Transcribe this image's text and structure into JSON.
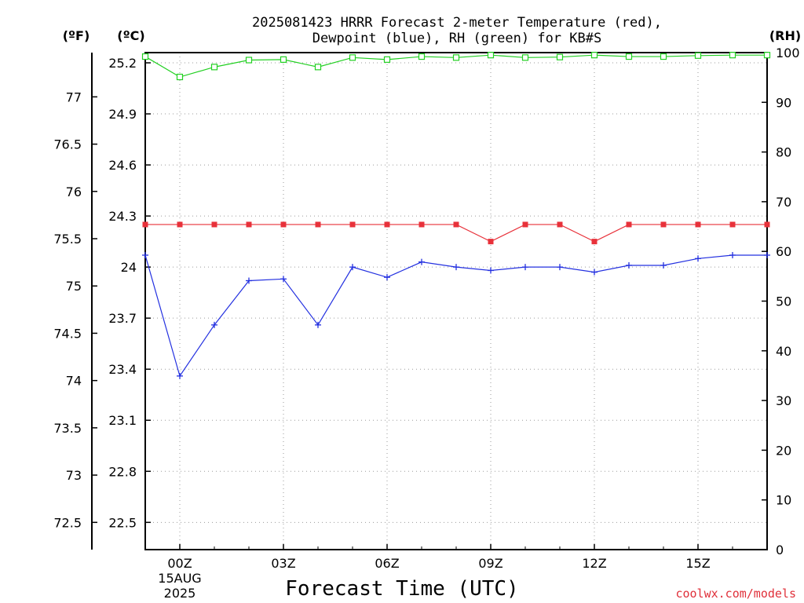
{
  "chart_data": {
    "type": "line",
    "title_line1": "2025081423 HRRR Forecast 2-meter Temperature (red),",
    "title_line2": "Dewpoint (blue), RH (green) for KB#S",
    "xlabel": "Forecast Time (UTC)",
    "credit": "coolwx.com/models",
    "credit_color": "#e0303a",
    "unit_f": "(ºF)",
    "unit_c": "(ºC)",
    "unit_rh": "(RH)",
    "x_hours": [
      -1,
      0,
      1,
      2,
      3,
      4,
      5,
      6,
      7,
      8,
      9,
      10,
      11,
      12,
      13,
      14,
      15,
      16,
      17
    ],
    "x_ticks": [
      {
        "hour": 0,
        "label": "00Z",
        "sub1": "15AUG",
        "sub2": "2025"
      },
      {
        "hour": 3,
        "label": "03Z",
        "sub1": "",
        "sub2": ""
      },
      {
        "hour": 6,
        "label": "06Z",
        "sub1": "",
        "sub2": ""
      },
      {
        "hour": 9,
        "label": "09Z",
        "sub1": "",
        "sub2": ""
      },
      {
        "hour": 12,
        "label": "12Z",
        "sub1": "",
        "sub2": ""
      },
      {
        "hour": 15,
        "label": "15Z",
        "sub1": "",
        "sub2": ""
      }
    ],
    "xlim": [
      -1,
      17
    ],
    "celsius_ticks": [
      "25.2",
      "24.9",
      "24.6",
      "24.3",
      "24",
      "23.7",
      "23.4",
      "23.1",
      "22.8",
      "22.5"
    ],
    "celsius_ylim": [
      22.34,
      25.26
    ],
    "fahrenheit_ticks": [
      "77",
      "76.5",
      "76",
      "75.5",
      "75",
      "74.5",
      "74",
      "73.5",
      "73",
      "72.5"
    ],
    "rh_ticks": [
      "100",
      "90",
      "80",
      "70",
      "60",
      "50",
      "40",
      "30",
      "20",
      "10",
      "0"
    ],
    "rh_ylim": [
      0,
      100
    ],
    "grid": true,
    "series": [
      {
        "name": "Temperature",
        "color": "#e8313a",
        "marker": "filled-square",
        "axis": "celsius",
        "values": [
          24.25,
          24.25,
          24.25,
          24.25,
          24.25,
          24.25,
          24.25,
          24.25,
          24.25,
          24.25,
          24.15,
          24.25,
          24.25,
          24.15,
          24.25,
          24.25,
          24.25,
          24.25,
          24.25
        ]
      },
      {
        "name": "Dewpoint",
        "color": "#2330e0",
        "marker": "plus",
        "axis": "celsius",
        "values": [
          24.07,
          23.36,
          23.66,
          23.92,
          23.93,
          23.66,
          24.0,
          23.94,
          24.03,
          24.0,
          23.98,
          24.0,
          24.0,
          23.97,
          24.01,
          24.01,
          24.05,
          24.07,
          24.07
        ]
      },
      {
        "name": "RH",
        "color": "#22d022",
        "marker": "open-square",
        "axis": "rh",
        "values": [
          99.2,
          95.1,
          97.1,
          98.5,
          98.6,
          97.1,
          99.0,
          98.6,
          99.2,
          99.0,
          99.5,
          99.0,
          99.1,
          99.5,
          99.2,
          99.2,
          99.4,
          99.5,
          99.5
        ]
      }
    ]
  }
}
